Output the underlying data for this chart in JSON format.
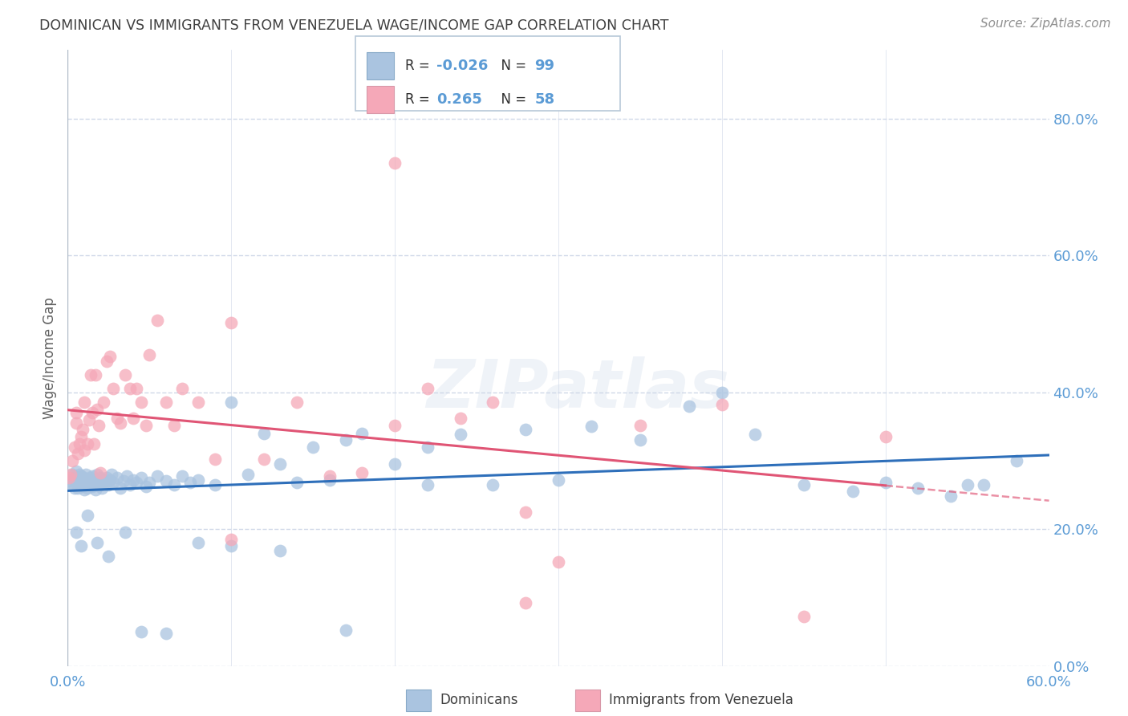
{
  "title": "DOMINICAN VS IMMIGRANTS FROM VENEZUELA WAGE/INCOME GAP CORRELATION CHART",
  "source": "Source: ZipAtlas.com",
  "ylabel": "Wage/Income Gap",
  "xlim": [
    0.0,
    0.6
  ],
  "ylim": [
    0.0,
    0.9
  ],
  "ytick_vals": [
    0.0,
    0.2,
    0.4,
    0.6,
    0.8
  ],
  "xtick_vals": [
    0.0,
    0.1,
    0.2,
    0.3,
    0.4,
    0.5,
    0.6
  ],
  "xtick_labels": [
    "0.0%",
    "",
    "",
    "",
    "",
    "",
    "60.0%"
  ],
  "dominicans_R": -0.026,
  "dominicans_N": 99,
  "venezuela_R": 0.265,
  "venezuela_N": 58,
  "watermark": "ZIPatlas",
  "legend_labels": [
    "Dominicans",
    "Immigrants from Venezuela"
  ],
  "blue_scatter_color": "#aac4e0",
  "pink_scatter_color": "#f5a8b8",
  "blue_line_color": "#2e6fba",
  "pink_line_color": "#e05575",
  "axis_color": "#5b9bd5",
  "grid_color": "#d0d8e8",
  "title_color": "#404040",
  "source_color": "#909090",
  "background_color": "#ffffff",
  "dom_x": [
    0.001,
    0.002,
    0.003,
    0.004,
    0.004,
    0.005,
    0.005,
    0.006,
    0.006,
    0.007,
    0.007,
    0.008,
    0.008,
    0.009,
    0.009,
    0.01,
    0.01,
    0.011,
    0.011,
    0.012,
    0.012,
    0.013,
    0.014,
    0.015,
    0.015,
    0.016,
    0.016,
    0.017,
    0.018,
    0.018,
    0.019,
    0.02,
    0.02,
    0.021,
    0.022,
    0.023,
    0.024,
    0.025,
    0.026,
    0.027,
    0.028,
    0.03,
    0.032,
    0.034,
    0.036,
    0.038,
    0.04,
    0.042,
    0.045,
    0.048,
    0.05,
    0.055,
    0.06,
    0.065,
    0.07,
    0.075,
    0.08,
    0.09,
    0.1,
    0.11,
    0.12,
    0.13,
    0.14,
    0.15,
    0.16,
    0.17,
    0.18,
    0.2,
    0.22,
    0.24,
    0.26,
    0.28,
    0.3,
    0.32,
    0.35,
    0.38,
    0.4,
    0.42,
    0.45,
    0.48,
    0.5,
    0.52,
    0.54,
    0.56,
    0.58,
    0.005,
    0.008,
    0.012,
    0.018,
    0.025,
    0.035,
    0.045,
    0.06,
    0.08,
    0.1,
    0.13,
    0.17,
    0.22,
    0.55
  ],
  "dom_y": [
    0.27,
    0.265,
    0.28,
    0.275,
    0.26,
    0.285,
    0.27,
    0.26,
    0.275,
    0.268,
    0.28,
    0.265,
    0.278,
    0.27,
    0.262,
    0.275,
    0.258,
    0.268,
    0.28,
    0.26,
    0.272,
    0.265,
    0.275,
    0.262,
    0.278,
    0.27,
    0.265,
    0.258,
    0.272,
    0.28,
    0.268,
    0.265,
    0.275,
    0.26,
    0.27,
    0.268,
    0.275,
    0.265,
    0.272,
    0.28,
    0.268,
    0.275,
    0.26,
    0.27,
    0.278,
    0.265,
    0.272,
    0.268,
    0.275,
    0.262,
    0.268,
    0.278,
    0.27,
    0.265,
    0.278,
    0.268,
    0.272,
    0.265,
    0.385,
    0.28,
    0.34,
    0.295,
    0.268,
    0.32,
    0.272,
    0.33,
    0.34,
    0.295,
    0.32,
    0.338,
    0.265,
    0.345,
    0.272,
    0.35,
    0.33,
    0.38,
    0.4,
    0.338,
    0.265,
    0.255,
    0.268,
    0.26,
    0.248,
    0.265,
    0.3,
    0.195,
    0.175,
    0.22,
    0.18,
    0.16,
    0.195,
    0.05,
    0.048,
    0.18,
    0.175,
    0.168,
    0.052,
    0.265,
    0.265
  ],
  "ven_x": [
    0.001,
    0.002,
    0.003,
    0.004,
    0.005,
    0.005,
    0.006,
    0.007,
    0.008,
    0.009,
    0.01,
    0.01,
    0.012,
    0.013,
    0.014,
    0.015,
    0.016,
    0.017,
    0.018,
    0.019,
    0.02,
    0.022,
    0.024,
    0.026,
    0.028,
    0.03,
    0.032,
    0.035,
    0.038,
    0.04,
    0.042,
    0.045,
    0.048,
    0.05,
    0.055,
    0.06,
    0.065,
    0.07,
    0.08,
    0.09,
    0.1,
    0.12,
    0.14,
    0.16,
    0.18,
    0.2,
    0.22,
    0.24,
    0.26,
    0.28,
    0.3,
    0.35,
    0.4,
    0.45,
    0.5,
    0.28,
    0.2,
    0.1
  ],
  "ven_y": [
    0.275,
    0.28,
    0.3,
    0.32,
    0.355,
    0.37,
    0.31,
    0.325,
    0.335,
    0.345,
    0.315,
    0.385,
    0.325,
    0.36,
    0.425,
    0.37,
    0.325,
    0.425,
    0.375,
    0.352,
    0.282,
    0.385,
    0.445,
    0.452,
    0.405,
    0.362,
    0.355,
    0.425,
    0.405,
    0.362,
    0.405,
    0.385,
    0.352,
    0.455,
    0.505,
    0.385,
    0.352,
    0.405,
    0.385,
    0.302,
    0.185,
    0.302,
    0.385,
    0.278,
    0.282,
    0.352,
    0.405,
    0.362,
    0.385,
    0.092,
    0.152,
    0.352,
    0.382,
    0.072,
    0.335,
    0.225,
    0.735,
    0.502
  ]
}
